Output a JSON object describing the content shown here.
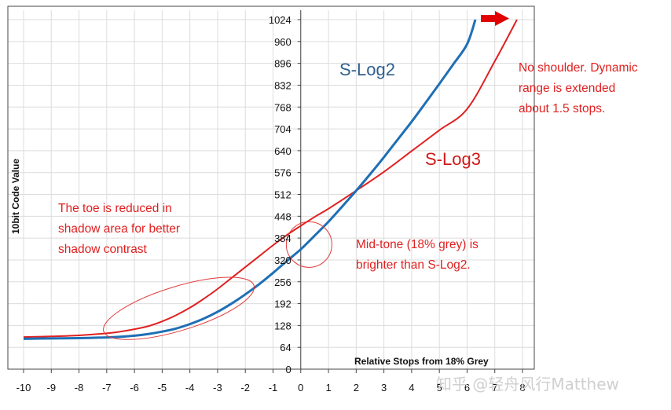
{
  "chart_data": {
    "type": "line",
    "ylabel": "10bit Code Value",
    "xlabel": "Relative Stops from 18% Grey",
    "xlim": [
      -10,
      8
    ],
    "ylim": [
      0,
      1024
    ],
    "x_ticks": [
      -10,
      -9,
      -8,
      -7,
      -6,
      -5,
      -4,
      -3,
      -2,
      -1,
      0,
      1,
      2,
      3,
      4,
      5,
      6,
      7,
      8
    ],
    "y_ticks": [
      0,
      64,
      128,
      192,
      256,
      320,
      384,
      448,
      512,
      576,
      640,
      704,
      768,
      832,
      896,
      960,
      1024
    ],
    "grid": true,
    "series": [
      {
        "name": "S-Log2",
        "color": "#1f6fb5",
        "x": [
          -10,
          -9,
          -8,
          -7,
          -6.5,
          -6,
          -5.5,
          -5,
          -4.5,
          -4,
          -3.5,
          -3,
          -2.5,
          -2,
          -1.5,
          -1,
          -0.5,
          0,
          0.5,
          1,
          1.5,
          2,
          2.5,
          3,
          3.5,
          4,
          4.5,
          5,
          5.5,
          6,
          6.3
        ],
        "values": [
          89,
          90,
          91,
          93,
          95,
          98,
          103,
          110,
          119,
          132,
          148,
          168,
          192,
          219,
          249,
          282,
          317,
          351,
          391,
          432,
          477,
          523,
          571,
          621,
          673,
          725,
          780,
          836,
          893,
          952,
          1024
        ]
      },
      {
        "name": "S-Log3",
        "color": "#e02020",
        "x": [
          -10,
          -9,
          -8,
          -7,
          -6.5,
          -6,
          -5.5,
          -5,
          -4.5,
          -4,
          -3.5,
          -3,
          -2.5,
          -2,
          -1.5,
          -1,
          -0.5,
          0,
          0.5,
          1,
          2,
          3,
          4,
          5,
          6,
          7,
          7.8
        ],
        "values": [
          94,
          96,
          99,
          105,
          110,
          117,
          126,
          140,
          158,
          180,
          206,
          235,
          267,
          299,
          331,
          363,
          393,
          420,
          446,
          470,
          523,
          578,
          639,
          700,
          762,
          902,
          1024
        ]
      }
    ],
    "annotations": {
      "slog2_label": "S-Log2",
      "slog3_label": "S-Log3",
      "shoulder_note": [
        "No shoulder. Dynamic",
        "range is extended",
        "about 1.5 stops."
      ],
      "toe_note": [
        "The toe is reduced in",
        "shadow area for better",
        "shadow contrast"
      ],
      "midtone_note": [
        "Mid-tone (18% grey) is",
        "brighter than S-Log2."
      ]
    },
    "watermark": "知乎 @轻舟风行Matthew"
  }
}
